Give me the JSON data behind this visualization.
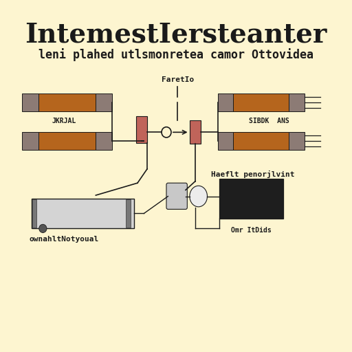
{
  "bg_color": "#fdf5d0",
  "title": "IntemestIersteanter",
  "subtitle": "leni plahed utlsmonretea camor Ottovidea",
  "title_fontsize": 28,
  "subtitle_fontsize": 12,
  "resistor_color_body": "#b5651d",
  "resistor_color_cap": "#8c7b75",
  "resistor_color_small": "#c0645a",
  "wire_color": "#1a1a1a",
  "label_left": "JKRJAL",
  "label_right_top": "SIBDK  ANS",
  "label_bottom_left": "ownahltNotyoual",
  "label_bottom_right": "Omr ItDids",
  "label_center_top": "FaretIo",
  "label_bottom_center": "Haeflt penorjlvint"
}
